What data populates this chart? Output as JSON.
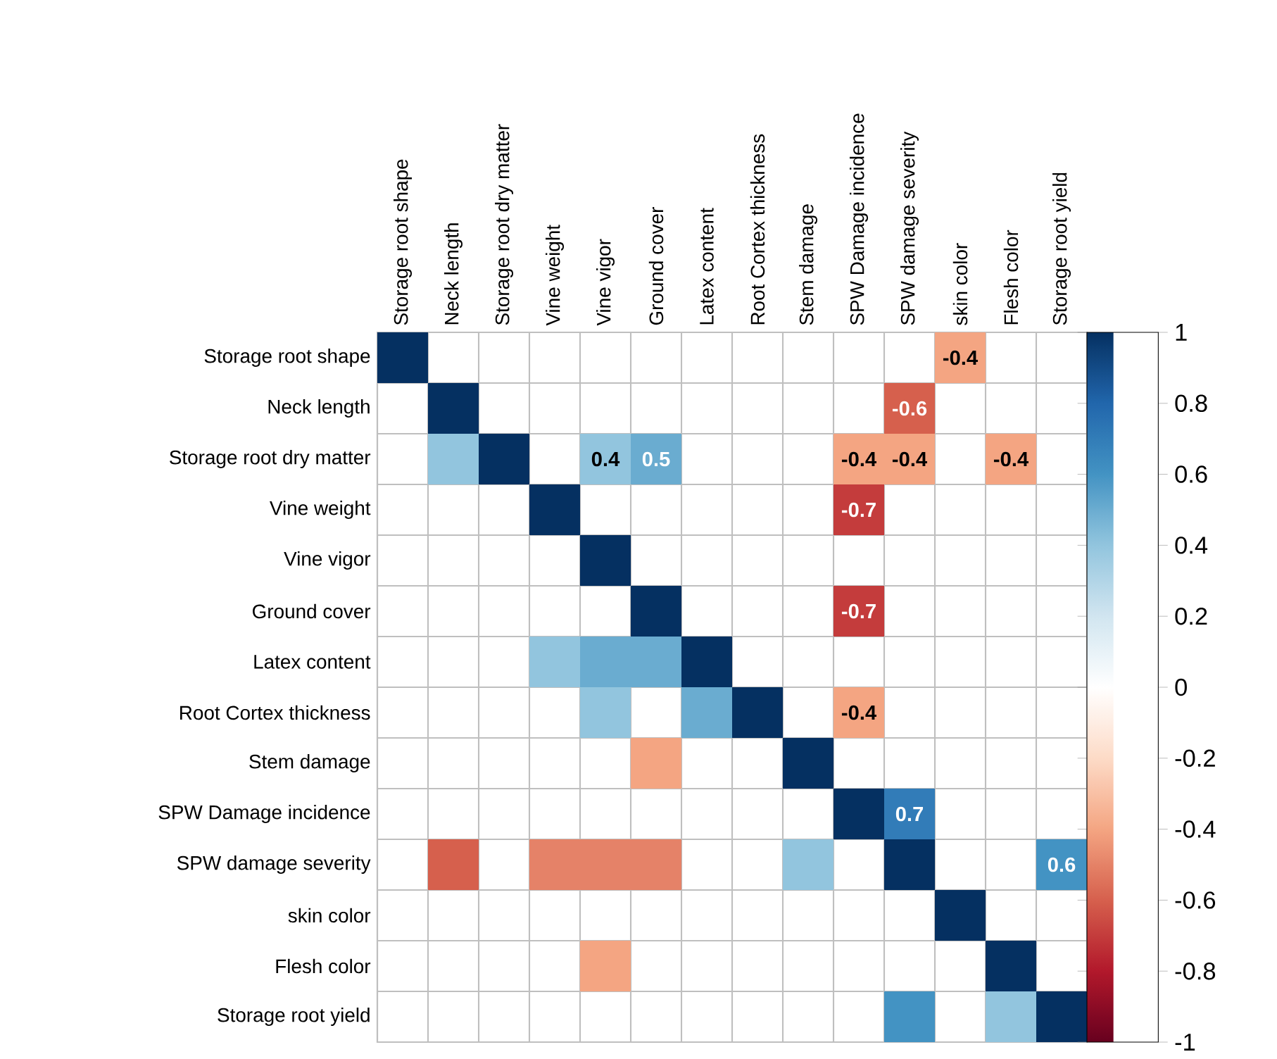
{
  "chart_data": {
    "type": "heatmap",
    "categories": [
      "Storage root shape",
      "Neck length",
      "Storage root dry matter",
      "Vine weight",
      "Vine vigor",
      "Ground cover",
      "Latex content",
      "Root Cortex thickness",
      "Stem damage",
      "SPW Damage incidence",
      "SPW damage severity",
      "skin color",
      "Flesh color",
      "Storage root yield"
    ],
    "y_categories": [
      "Storage root shape",
      "Neck length",
      "Storage root dry matter",
      "Vine weight",
      "Vine vigor",
      "Ground cover",
      "Latex content",
      "Root Cortex thickness",
      "Stem damage",
      "SPW Damage incidence",
      "SPW damage severity",
      "skin color",
      "Flesh color",
      "Storage root yield"
    ],
    "cells": [
      [
        1,
        null,
        null,
        null,
        null,
        null,
        null,
        null,
        null,
        null,
        null,
        -0.4,
        null,
        null
      ],
      [
        null,
        1,
        null,
        null,
        null,
        null,
        null,
        null,
        null,
        null,
        -0.6,
        null,
        null,
        null
      ],
      [
        null,
        0.4,
        1,
        null,
        0.4,
        0.5,
        null,
        null,
        null,
        -0.4,
        -0.4,
        null,
        -0.4,
        null
      ],
      [
        null,
        null,
        null,
        1,
        null,
        null,
        null,
        null,
        null,
        -0.7,
        null,
        null,
        null,
        null
      ],
      [
        null,
        null,
        null,
        null,
        1,
        null,
        null,
        null,
        null,
        null,
        null,
        null,
        null,
        null
      ],
      [
        null,
        null,
        null,
        null,
        null,
        1,
        null,
        null,
        null,
        -0.7,
        null,
        null,
        null,
        null
      ],
      [
        null,
        null,
        null,
        0.4,
        0.5,
        0.5,
        1,
        null,
        null,
        null,
        null,
        null,
        null,
        null
      ],
      [
        null,
        null,
        null,
        null,
        0.4,
        null,
        0.5,
        1,
        null,
        -0.4,
        null,
        null,
        null,
        null
      ],
      [
        null,
        null,
        null,
        null,
        null,
        -0.4,
        null,
        null,
        1,
        null,
        null,
        null,
        null,
        null
      ],
      [
        null,
        null,
        null,
        null,
        null,
        null,
        null,
        null,
        null,
        1,
        0.7,
        null,
        null,
        null
      ],
      [
        null,
        -0.6,
        null,
        -0.5,
        -0.5,
        -0.5,
        null,
        null,
        0.4,
        null,
        1,
        null,
        null,
        0.6
      ],
      [
        null,
        null,
        null,
        null,
        null,
        null,
        null,
        null,
        null,
        null,
        null,
        1,
        null,
        null
      ],
      [
        null,
        null,
        null,
        null,
        -0.4,
        null,
        null,
        null,
        null,
        null,
        null,
        null,
        1,
        null
      ],
      [
        null,
        null,
        null,
        null,
        null,
        null,
        null,
        null,
        null,
        null,
        0.6,
        null,
        0.4,
        1
      ]
    ],
    "cell_labels": [
      [
        null,
        null,
        null,
        null,
        null,
        null,
        null,
        null,
        null,
        null,
        null,
        "-0.4",
        null,
        null
      ],
      [
        null,
        null,
        null,
        null,
        null,
        null,
        null,
        null,
        null,
        null,
        "-0.6",
        null,
        null,
        null
      ],
      [
        null,
        null,
        null,
        null,
        "0.4",
        "0.5",
        null,
        null,
        null,
        "-0.4",
        "-0.4",
        null,
        "-0.4",
        null
      ],
      [
        null,
        null,
        null,
        null,
        null,
        null,
        null,
        null,
        null,
        "-0.7",
        null,
        null,
        null,
        null
      ],
      [
        null,
        null,
        null,
        null,
        null,
        null,
        null,
        null,
        null,
        null,
        null,
        null,
        null,
        null
      ],
      [
        null,
        null,
        null,
        null,
        null,
        null,
        null,
        null,
        null,
        "-0.7",
        null,
        null,
        null,
        null
      ],
      [
        null,
        null,
        null,
        null,
        null,
        null,
        null,
        null,
        null,
        null,
        null,
        null,
        null,
        null
      ],
      [
        null,
        null,
        null,
        null,
        null,
        null,
        null,
        null,
        null,
        "-0.4",
        null,
        null,
        null,
        null
      ],
      [
        null,
        null,
        null,
        null,
        null,
        null,
        null,
        null,
        null,
        null,
        null,
        null,
        null,
        null
      ],
      [
        null,
        null,
        null,
        null,
        null,
        null,
        null,
        null,
        null,
        null,
        "0.7",
        null,
        null,
        null
      ],
      [
        null,
        null,
        null,
        null,
        null,
        null,
        null,
        null,
        null,
        null,
        null,
        null,
        null,
        "0.6"
      ],
      [
        null,
        null,
        null,
        null,
        null,
        null,
        null,
        null,
        null,
        null,
        null,
        null,
        null,
        null
      ],
      [
        null,
        null,
        null,
        null,
        null,
        null,
        null,
        null,
        null,
        null,
        null,
        null,
        null,
        null
      ],
      [
        null,
        null,
        null,
        null,
        null,
        null,
        null,
        null,
        null,
        null,
        null,
        null,
        null,
        null
      ]
    ],
    "clim": [
      -1,
      1
    ],
    "cticks": [
      1,
      0.8,
      0.6,
      0.4,
      0.2,
      0,
      -0.2,
      -0.4,
      -0.6,
      -0.8,
      -1
    ],
    "grid": true
  }
}
